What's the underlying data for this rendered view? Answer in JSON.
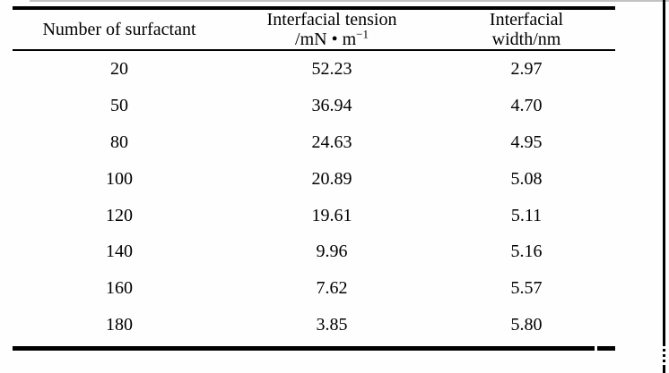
{
  "page": {
    "background_color": "#fefefe",
    "text_color": "#000000",
    "rule_color": "#000000"
  },
  "table": {
    "headers": {
      "col1": "Number of surfactant",
      "col2_line1": "Interfacial tension",
      "col2_unit_prefix": "/mN • m",
      "col2_unit_sup": "−1",
      "col3_line1": "Interfacial",
      "col3_line2": "width/nm"
    },
    "rows": [
      {
        "n": "20",
        "tension": "52.23",
        "width": "2.97"
      },
      {
        "n": "50",
        "tension": "36.94",
        "width": "4.70"
      },
      {
        "n": "80",
        "tension": "24.63",
        "width": "4.95"
      },
      {
        "n": "100",
        "tension": "20.89",
        "width": "5.08"
      },
      {
        "n": "120",
        "tension": "19.61",
        "width": "5.11"
      },
      {
        "n": "140",
        "tension": "9.96",
        "width": "5.16"
      },
      {
        "n": "160",
        "tension": "7.62",
        "width": "5.57"
      },
      {
        "n": "180",
        "tension": "3.85",
        "width": "5.80"
      }
    ]
  }
}
